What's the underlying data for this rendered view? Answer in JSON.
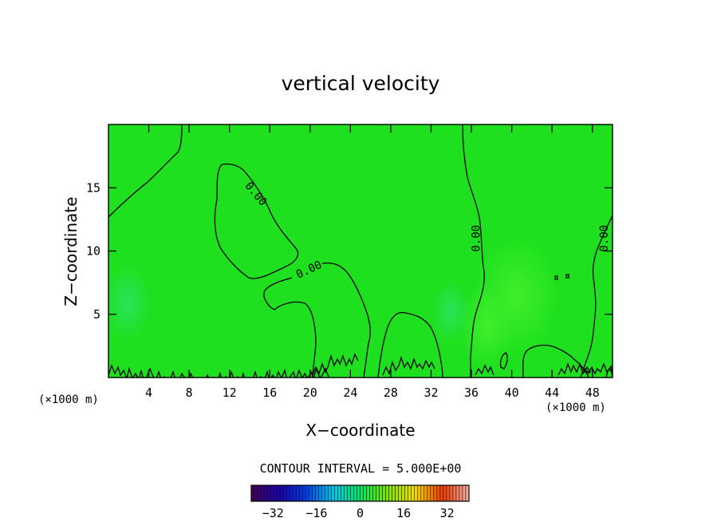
{
  "chart_data": {
    "type": "heatmap",
    "title": "vertical velocity",
    "xlabel": "X−coordinate",
    "ylabel": "Z−coordinate",
    "x_unit": "(×1000 m)",
    "y_unit": "(×1000 m)",
    "xlim": [
      0,
      50
    ],
    "ylim": [
      0,
      20
    ],
    "x_ticks": [
      4,
      8,
      12,
      16,
      20,
      24,
      28,
      32,
      36,
      40,
      44,
      48
    ],
    "x_tick_labels": [
      "4",
      "8",
      "12",
      "16",
      "20",
      "24",
      "28",
      "32",
      "36",
      "40",
      "44",
      "48"
    ],
    "y_ticks": [
      5,
      10,
      15
    ],
    "y_tick_labels": [
      "5",
      "10",
      "15"
    ],
    "contour_interval_text": "CONTOUR INTERVAL = 5.000E+00",
    "contour_labels": [
      {
        "text": "0.00",
        "x": 14.6,
        "z": 14.5,
        "angle": 50
      },
      {
        "text": "0.00",
        "x": 19.9,
        "z": 8.5,
        "angle": -25
      },
      {
        "text": "0.00",
        "x": 36.5,
        "z": 11.0,
        "angle": -90
      },
      {
        "text": "0.00",
        "x": 49.2,
        "z": 11.0,
        "angle": -90
      }
    ],
    "colorbar": {
      "min": -40,
      "max": 40,
      "tick_values": [
        -32,
        -16,
        0,
        16,
        32
      ],
      "tick_labels": [
        "−32",
        "−16",
        "0",
        "16",
        "32"
      ]
    },
    "colors": {
      "field_base": "#1ee01e",
      "field_weak_positive": "#3cef2a",
      "field_weak_negative": "#28e650",
      "contour": "#000000"
    }
  }
}
